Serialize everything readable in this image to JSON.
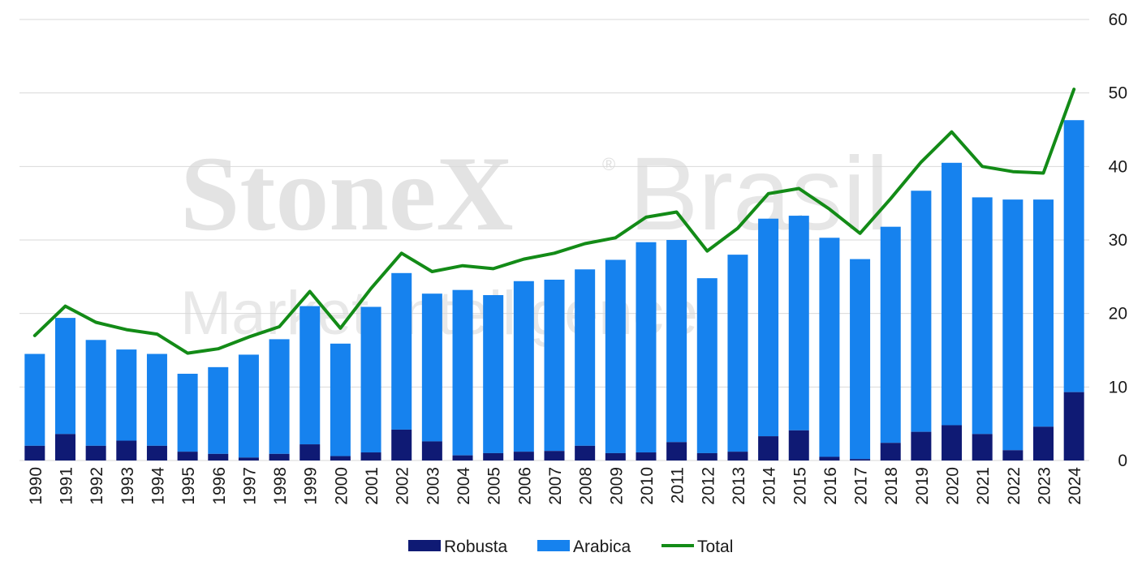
{
  "watermark": {
    "line1_bold": "StoneX",
    "registered": "®",
    "line1_light": "Brasil",
    "line2": "Market Intelligence"
  },
  "colors": {
    "robusta": "#0f1a74",
    "arabica": "#1682ee",
    "total": "#138b17",
    "grid": "#d9d9d9"
  },
  "chart_data": {
    "type": "bar",
    "stacked": true,
    "categories": [
      "1990",
      "1991",
      "1992",
      "1993",
      "1994",
      "1995",
      "1996",
      "1997",
      "1998",
      "1999",
      "2000",
      "2001",
      "2002",
      "2003",
      "2004",
      "2005",
      "2006",
      "2007",
      "2008",
      "2009",
      "2010",
      "2011",
      "2012",
      "2013",
      "2014",
      "2015",
      "2016",
      "2017",
      "2018",
      "2019",
      "2020",
      "2021",
      "2022",
      "2023",
      "2024"
    ],
    "series": [
      {
        "name": "Robusta",
        "type": "bar",
        "values": [
          2.0,
          3.6,
          2.0,
          2.7,
          2.0,
          1.2,
          0.9,
          0.4,
          0.9,
          2.2,
          0.6,
          1.1,
          4.2,
          2.6,
          0.7,
          1.0,
          1.2,
          1.3,
          2.0,
          1.0,
          1.1,
          2.5,
          1.0,
          1.2,
          3.3,
          4.1,
          0.5,
          0.2,
          2.4,
          3.9,
          4.8,
          3.6,
          1.4,
          4.6,
          9.3
        ]
      },
      {
        "name": "Arabica",
        "type": "bar",
        "values": [
          12.5,
          15.8,
          14.4,
          12.4,
          12.5,
          10.6,
          11.8,
          14.0,
          15.6,
          18.8,
          15.3,
          19.8,
          21.3,
          20.1,
          22.5,
          21.5,
          23.2,
          23.3,
          24.0,
          26.3,
          28.6,
          27.5,
          23.8,
          26.8,
          29.6,
          29.2,
          29.8,
          27.2,
          29.4,
          32.8,
          35.7,
          32.2,
          34.1,
          30.9,
          37.0
        ]
      },
      {
        "name": "Total",
        "type": "line",
        "values": [
          17.0,
          21.0,
          18.8,
          17.8,
          17.2,
          14.6,
          15.2,
          16.8,
          18.2,
          23.0,
          18.0,
          23.4,
          28.2,
          25.7,
          26.5,
          26.1,
          27.4,
          28.2,
          29.5,
          30.3,
          33.1,
          33.8,
          28.5,
          31.6,
          36.3,
          37.0,
          34.2,
          30.9,
          35.6,
          40.6,
          44.7,
          40.0,
          39.3,
          39.1,
          50.5
        ]
      }
    ],
    "yticks": [
      "0",
      "10",
      "20",
      "30",
      "40",
      "50",
      "60"
    ],
    "ylim": [
      0,
      60
    ],
    "y_axis_side": "right",
    "grid": true,
    "legend_position": "bottom"
  }
}
